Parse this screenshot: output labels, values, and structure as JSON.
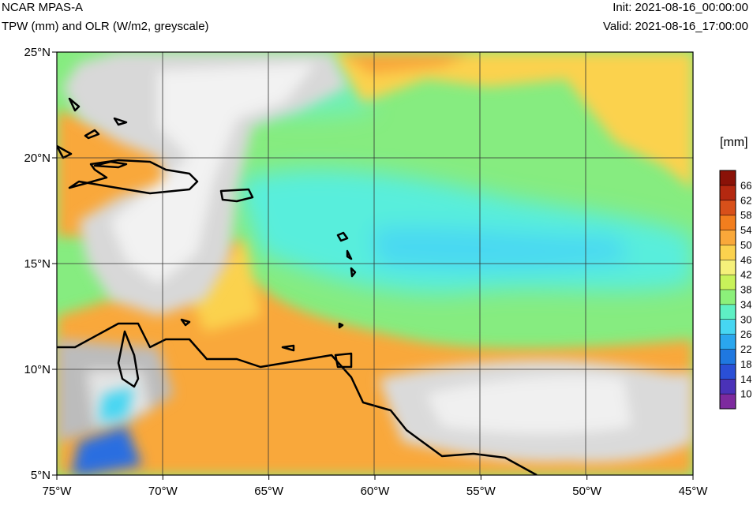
{
  "header": {
    "model": "NCAR MPAS-A",
    "fields": "TPW (mm) and OLR (W/m2, greyscale)",
    "init": "Init: 2021-08-16_00:00:00",
    "valid": "Valid: 2021-08-16_17:00:00"
  },
  "map": {
    "lon_range": [
      -75,
      -45
    ],
    "lat_range": [
      5,
      25
    ],
    "lon_ticks": [
      {
        "value": -75,
        "label": "75°W"
      },
      {
        "value": -70,
        "label": "70°W"
      },
      {
        "value": -65,
        "label": "65°W"
      },
      {
        "value": -60,
        "label": "60°W"
      },
      {
        "value": -55,
        "label": "55°W"
      },
      {
        "value": -50,
        "label": "50°W"
      },
      {
        "value": -45,
        "label": "45°W"
      }
    ],
    "lat_ticks": [
      {
        "value": 5,
        "label": "5°N"
      },
      {
        "value": 10,
        "label": "10°N"
      },
      {
        "value": 15,
        "label": "15°N"
      },
      {
        "value": 20,
        "label": "20°N"
      },
      {
        "value": 25,
        "label": "25°N"
      }
    ],
    "grid": true
  },
  "colorbar": {
    "unit": "[mm]",
    "levels": [
      "10",
      "14",
      "18",
      "22",
      "26",
      "30",
      "34",
      "38",
      "42",
      "46",
      "50",
      "54",
      "58",
      "62",
      "66"
    ],
    "colors": [
      "#7d2a9e",
      "#4a32b8",
      "#2a4fd6",
      "#1f78e0",
      "#2aa6ee",
      "#46d6f2",
      "#5ef0c4",
      "#8cf07a",
      "#c8f25a",
      "#f5f07a",
      "#fbd24e",
      "#f9a83a",
      "#f27e1e",
      "#d8501a",
      "#b42810",
      "#8a1208"
    ]
  }
}
